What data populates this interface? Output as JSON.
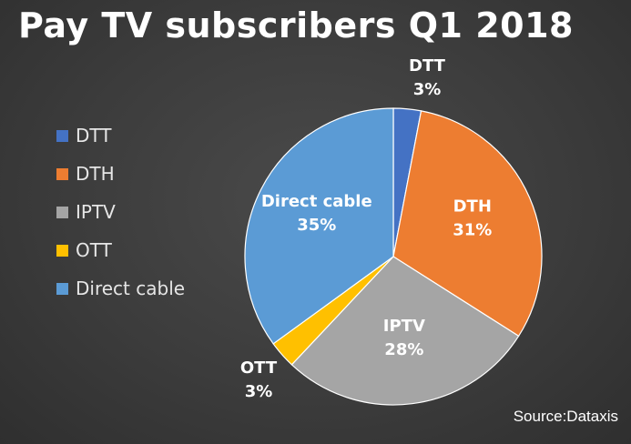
{
  "chart_data": {
    "type": "pie",
    "title": "Pay TV subscribers Q1 2018",
    "source": "Source:Dataxis",
    "slices": [
      {
        "label": "DTT",
        "value": 3,
        "display": "3%",
        "color": "#4472C4",
        "label_outside": true
      },
      {
        "label": "DTH",
        "value": 31,
        "display": "31%",
        "color": "#ED7D31",
        "label_outside": false
      },
      {
        "label": "IPTV",
        "value": 28,
        "display": "28%",
        "color": "#A5A5A5",
        "label_outside": false
      },
      {
        "label": "OTT",
        "value": 3,
        "display": "3%",
        "color": "#FFC000",
        "label_outside": true
      },
      {
        "label": "Direct cable",
        "value": 35,
        "display": "35%",
        "color": "#5B9BD5",
        "label_outside": false
      }
    ]
  }
}
